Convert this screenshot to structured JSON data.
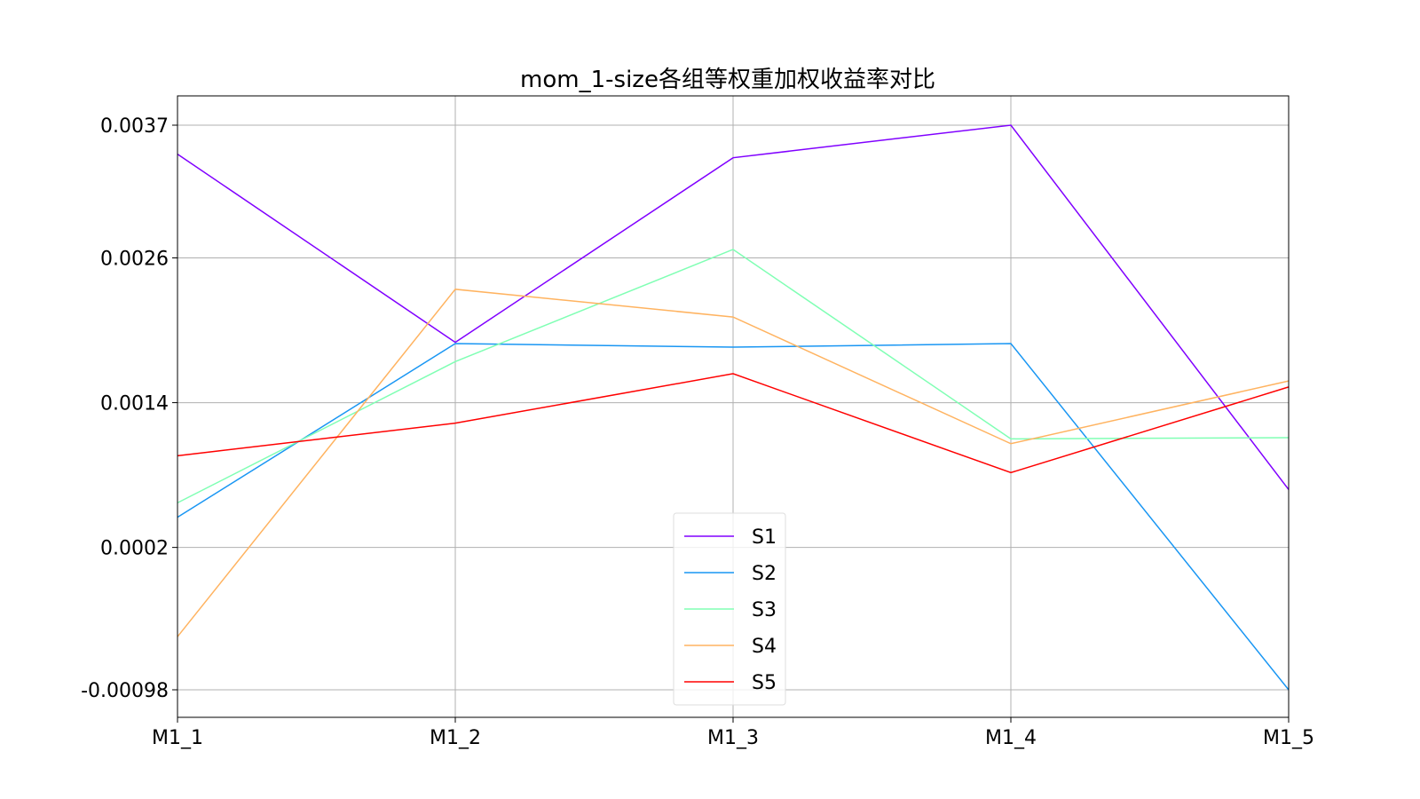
{
  "chart_data": {
    "type": "line",
    "title": "mom_1-size各组等权重加权收益率对比",
    "xlabel": "",
    "ylabel": "",
    "categories": [
      "M1_1",
      "M1_2",
      "M1_3",
      "M1_4",
      "M1_5"
    ],
    "yticks": [
      "0.0037",
      "0.0026",
      "0.0014",
      "0.0002",
      "-0.00098"
    ],
    "ytick_values": [
      0.0037,
      0.0026,
      0.0014,
      0.0002,
      -0.00098
    ],
    "ylim": [
      -0.0012,
      0.004
    ],
    "grid": true,
    "legend_position": "lower center",
    "series": [
      {
        "name": "S1",
        "color": "#8000ff",
        "values": [
          0.00346,
          0.0019,
          0.00343,
          0.0037,
          0.00068
        ]
      },
      {
        "name": "S2",
        "color": "#1996f3",
        "values": [
          0.00045,
          0.00189,
          0.00186,
          0.00189,
          -0.00098
        ]
      },
      {
        "name": "S3",
        "color": "#80ffb4",
        "values": [
          0.00057,
          0.00174,
          0.00267,
          0.0011,
          0.00111
        ]
      },
      {
        "name": "S4",
        "color": "#ffb360",
        "values": [
          -0.00054,
          0.00234,
          0.00211,
          0.00106,
          0.00158
        ]
      },
      {
        "name": "S5",
        "color": "#ff0000",
        "values": [
          0.00096,
          0.00123,
          0.00164,
          0.00082,
          0.00153
        ]
      }
    ]
  }
}
